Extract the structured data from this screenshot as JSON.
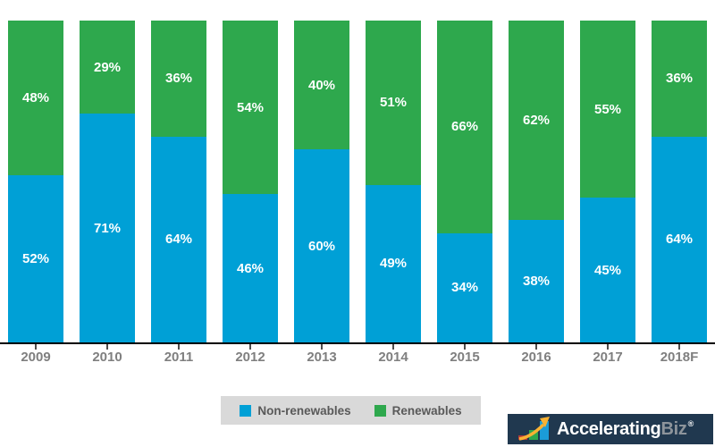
{
  "chart_data": {
    "type": "bar",
    "variant": "stacked-100-percent",
    "title": "",
    "categories": [
      "2009",
      "2010",
      "2011",
      "2012",
      "2013",
      "2014",
      "2015",
      "2016",
      "2017",
      "2018F"
    ],
    "series": [
      {
        "name": "Non-renewables",
        "color": "#00A0D6",
        "values": [
          52,
          71,
          64,
          46,
          60,
          49,
          34,
          38,
          45,
          64
        ]
      },
      {
        "name": "Renewables",
        "color": "#2EA84D",
        "values": [
          48,
          29,
          36,
          54,
          40,
          51,
          66,
          62,
          55,
          36
        ]
      }
    ],
    "value_suffix": "%",
    "ylim": [
      0,
      100
    ],
    "grid": false,
    "legend_position": "bottom",
    "data_label_color": "#FFFFFF",
    "axis_tick_label_color": "#7F7F7F",
    "axis_line_color": "#000000"
  },
  "legend": {
    "items": [
      {
        "label": "Non-renewables",
        "color": "#00A0D6"
      },
      {
        "label": "Renewables",
        "color": "#2EA84D"
      }
    ],
    "background": "#D9D9D9"
  },
  "branding": {
    "logo_primary": "Accelerating",
    "logo_secondary": "Biz",
    "registered_mark": "®",
    "icon": "growth-bars-arrow-icon",
    "background": "#20384F",
    "icon_colors": {
      "red_bar": "#B23A3C",
      "green_bar": "#2EA84D",
      "blue_bar": "#1B9CD8",
      "arrow": "#F9B233"
    }
  }
}
